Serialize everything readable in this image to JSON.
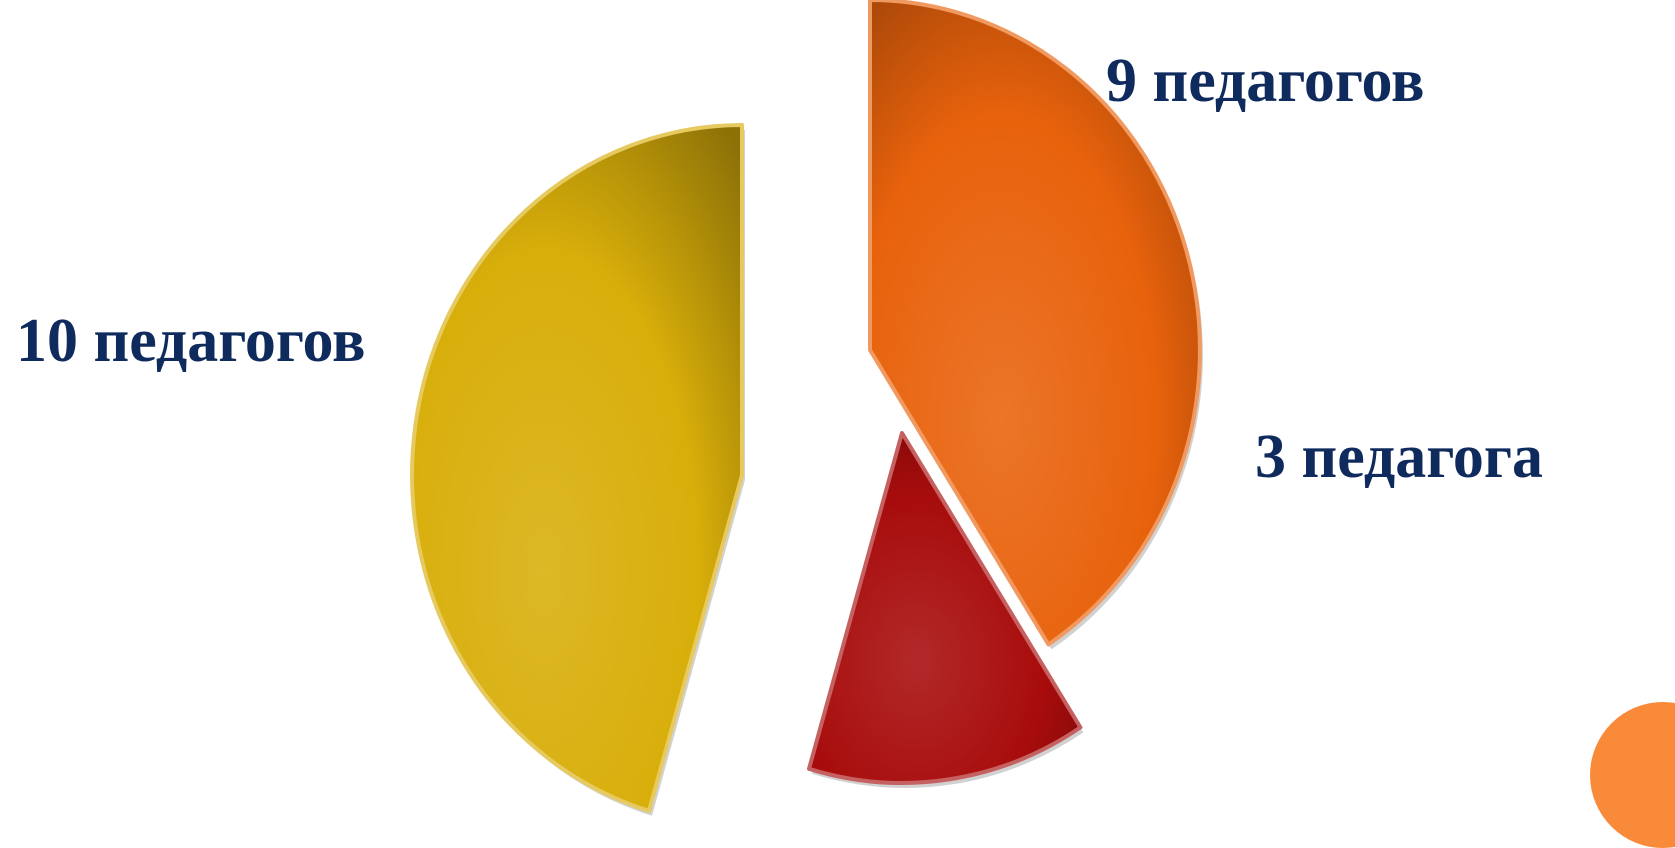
{
  "chart_data": {
    "type": "pie",
    "values": [
      9,
      3,
      10
    ],
    "slices": [
      {
        "label": "9 педагогов",
        "value": 9,
        "color": "#e8620c"
      },
      {
        "label": "3 педагога",
        "value": 3,
        "color": "#a80c0c"
      },
      {
        "label": "10 педагогов",
        "value": 10,
        "color": "#d8ae0a"
      }
    ],
    "label_color": "#0f2a5c",
    "start_angle": "12 o'clock, clockwise",
    "exploded": true,
    "style": "3D bevel with gradient fill"
  },
  "decoration": {
    "color": "#f98a3a"
  }
}
